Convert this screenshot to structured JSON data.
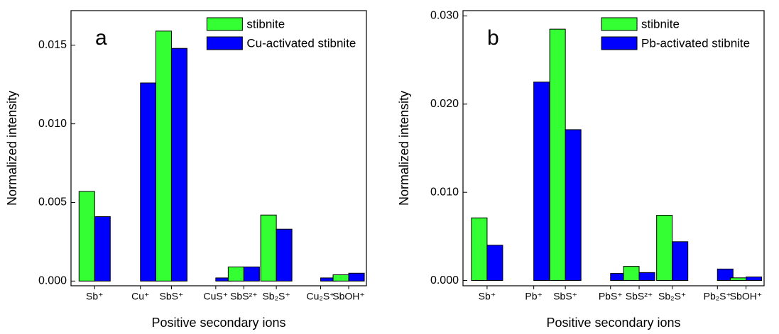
{
  "chart_data": [
    {
      "type": "bar",
      "annotation": "a",
      "xlabel": "Positive secondary ions",
      "ylabel": "Normalized intensity",
      "categories": [
        "Sb⁺",
        "Cu⁺",
        "SbS⁺",
        "CuS⁺",
        "SbS²⁺",
        "Sb₂S⁺",
        "Cu₂S⁺",
        "SbOH⁺"
      ],
      "series": [
        {
          "name": "stibnite",
          "color": "#33ff33",
          "values": [
            0.0057,
            0,
            0.0159,
            0,
            0.0009,
            0.0042,
            0,
            0.0004
          ]
        },
        {
          "name": "Cu-activated stibnite",
          "color": "#0000ff",
          "values": [
            0.0041,
            0.0126,
            0.0148,
            0.0002,
            0.0009,
            0.0033,
            0.0002,
            0.0005
          ]
        }
      ],
      "ylim": [
        -0.0003,
        0.0172
      ],
      "yticks": [
        {
          "value": 0,
          "label": "0.000"
        },
        {
          "value": 0.005,
          "label": "0.005"
        },
        {
          "value": 0.01,
          "label": "0.010"
        },
        {
          "value": 0.015,
          "label": "0.015"
        }
      ],
      "legend": "upper right"
    },
    {
      "type": "bar",
      "annotation": "b",
      "xlabel": "Positive secondary ions",
      "ylabel": "Normalized intensity",
      "categories": [
        "Sb⁺",
        "Pb⁺",
        "SbS⁺",
        "PbS⁺",
        "SbS²⁺",
        "Sb₂S⁺",
        "Pb₂S⁺",
        "SbOH⁺"
      ],
      "series": [
        {
          "name": "stibnite",
          "color": "#33ff33",
          "values": [
            0.0071,
            0,
            0.0285,
            0,
            0.0016,
            0.0074,
            0,
            0.0003
          ]
        },
        {
          "name": "Pb-activated stibnite",
          "color": "#0000ff",
          "values": [
            0.004,
            0.0225,
            0.0171,
            0.0008,
            0.0009,
            0.0044,
            0.0013,
            0.0004
          ]
        }
      ],
      "ylim": [
        -0.0006,
        0.0306
      ],
      "yticks": [
        {
          "value": 0,
          "label": "0.000"
        },
        {
          "value": 0.01,
          "label": "0.010"
        },
        {
          "value": 0.02,
          "label": "0.020"
        },
        {
          "value": 0.03,
          "label": "0.030"
        }
      ],
      "legend": "upper right"
    }
  ]
}
